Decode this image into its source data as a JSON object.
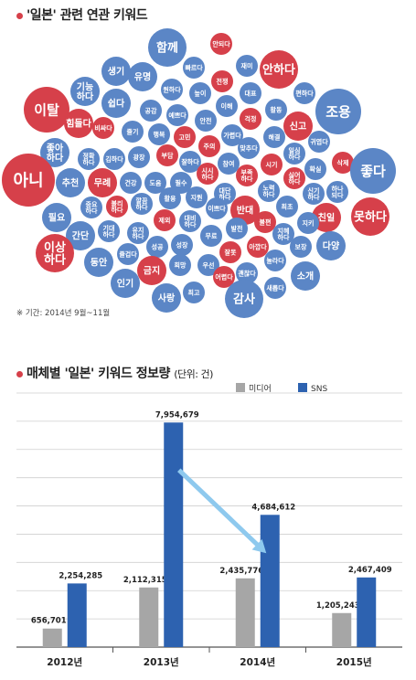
{
  "section1": {
    "title": "'일본' 관련 연관 키워드"
  },
  "keyword_cloud": {
    "colors": {
      "blue": "#5b86c6",
      "red": "#d6404a",
      "text": "#ffffff"
    },
    "keywords": [
      {
        "text": "함께",
        "tone": "blue",
        "size": "l"
      },
      {
        "text": "안되다",
        "tone": "red",
        "size": "s"
      },
      {
        "text": "빠르다",
        "tone": "blue",
        "size": "s"
      },
      {
        "text": "재미",
        "tone": "blue",
        "size": "s"
      },
      {
        "text": "안하다",
        "tone": "red",
        "size": "l"
      },
      {
        "text": "생기",
        "tone": "blue",
        "size": "m"
      },
      {
        "text": "유명",
        "tone": "blue",
        "size": "m"
      },
      {
        "text": "원하다",
        "tone": "blue",
        "size": "s"
      },
      {
        "text": "전쟁",
        "tone": "red",
        "size": "s"
      },
      {
        "text": "기능하다",
        "tone": "blue",
        "size": "m"
      },
      {
        "text": "높이",
        "tone": "blue",
        "size": "s"
      },
      {
        "text": "대표",
        "tone": "blue",
        "size": "s"
      },
      {
        "text": "편하다",
        "tone": "blue",
        "size": "s"
      },
      {
        "text": "이탈",
        "tone": "red",
        "size": "xl"
      },
      {
        "text": "쉽다",
        "tone": "blue",
        "size": "m"
      },
      {
        "text": "공감",
        "tone": "blue",
        "size": "s"
      },
      {
        "text": "예쁘다",
        "tone": "blue",
        "size": "s"
      },
      {
        "text": "이해",
        "tone": "blue",
        "size": "s"
      },
      {
        "text": "활동",
        "tone": "blue",
        "size": "s"
      },
      {
        "text": "조용",
        "tone": "blue",
        "size": "xl"
      },
      {
        "text": "힘들다",
        "tone": "red",
        "size": "m"
      },
      {
        "text": "비싸다",
        "tone": "red",
        "size": "s"
      },
      {
        "text": "즐기",
        "tone": "blue",
        "size": "s"
      },
      {
        "text": "행복",
        "tone": "blue",
        "size": "s"
      },
      {
        "text": "고민",
        "tone": "red",
        "size": "s"
      },
      {
        "text": "안전",
        "tone": "blue",
        "size": "s"
      },
      {
        "text": "걱정",
        "tone": "red",
        "size": "s"
      },
      {
        "text": "신고",
        "tone": "red",
        "size": "m"
      },
      {
        "text": "가렵다",
        "tone": "blue",
        "size": "s"
      },
      {
        "text": "해결",
        "tone": "blue",
        "size": "s"
      },
      {
        "text": "좋아하다",
        "tone": "blue",
        "size": "m"
      },
      {
        "text": "정확하다",
        "tone": "blue",
        "size": "s"
      },
      {
        "text": "김하다",
        "tone": "blue",
        "size": "s"
      },
      {
        "text": "광장",
        "tone": "blue",
        "size": "s"
      },
      {
        "text": "부담",
        "tone": "red",
        "size": "s"
      },
      {
        "text": "주의",
        "tone": "red",
        "size": "s"
      },
      {
        "text": "맞추다",
        "tone": "blue",
        "size": "s"
      },
      {
        "text": "일심하다",
        "tone": "blue",
        "size": "s"
      },
      {
        "text": "귀엽다",
        "tone": "blue",
        "size": "s"
      },
      {
        "text": "시기",
        "tone": "red",
        "size": "s"
      },
      {
        "text": "삭제",
        "tone": "red",
        "size": "s"
      },
      {
        "text": "잘하다",
        "tone": "blue",
        "size": "s"
      },
      {
        "text": "시시하다",
        "tone": "red",
        "size": "s"
      },
      {
        "text": "참여",
        "tone": "blue",
        "size": "s"
      },
      {
        "text": "아니",
        "tone": "red",
        "size": "xxl"
      },
      {
        "text": "추천",
        "tone": "blue",
        "size": "m"
      },
      {
        "text": "무례",
        "tone": "red",
        "size": "m"
      },
      {
        "text": "건강",
        "tone": "blue",
        "size": "s"
      },
      {
        "text": "도움",
        "tone": "blue",
        "size": "s"
      },
      {
        "text": "필수",
        "tone": "blue",
        "size": "s"
      },
      {
        "text": "부족하다",
        "tone": "red",
        "size": "s"
      },
      {
        "text": "싫어하다",
        "tone": "red",
        "size": "s"
      },
      {
        "text": "확실",
        "tone": "blue",
        "size": "s"
      },
      {
        "text": "좋다",
        "tone": "blue",
        "size": "xl"
      },
      {
        "text": "중요하다",
        "tone": "blue",
        "size": "s"
      },
      {
        "text": "불리하다",
        "tone": "red",
        "size": "s"
      },
      {
        "text": "깔끔하다",
        "tone": "blue",
        "size": "s"
      },
      {
        "text": "활용",
        "tone": "blue",
        "size": "s"
      },
      {
        "text": "지원",
        "tone": "blue",
        "size": "s"
      },
      {
        "text": "대단하다",
        "tone": "blue",
        "size": "s"
      },
      {
        "text": "노력하다",
        "tone": "blue",
        "size": "s"
      },
      {
        "text": "신기하다",
        "tone": "blue",
        "size": "s"
      },
      {
        "text": "하나되다",
        "tone": "blue",
        "size": "s"
      },
      {
        "text": "필요",
        "tone": "blue",
        "size": "m"
      },
      {
        "text": "이쁘다",
        "tone": "blue",
        "size": "s"
      },
      {
        "text": "반대",
        "tone": "red",
        "size": "m"
      },
      {
        "text": "최초",
        "tone": "blue",
        "size": "s"
      },
      {
        "text": "친일",
        "tone": "red",
        "size": "m"
      },
      {
        "text": "못하다",
        "tone": "red",
        "size": "l"
      },
      {
        "text": "간단",
        "tone": "blue",
        "size": "m"
      },
      {
        "text": "기대하다",
        "tone": "blue",
        "size": "s"
      },
      {
        "text": "유지하다",
        "tone": "blue",
        "size": "s"
      },
      {
        "text": "제외",
        "tone": "red",
        "size": "s"
      },
      {
        "text": "대비하다",
        "tone": "blue",
        "size": "s"
      },
      {
        "text": "발전",
        "tone": "blue",
        "size": "s"
      },
      {
        "text": "불편",
        "tone": "red",
        "size": "s"
      },
      {
        "text": "지혜하다",
        "tone": "blue",
        "size": "s"
      },
      {
        "text": "지키",
        "tone": "blue",
        "size": "s"
      },
      {
        "text": "이상하다",
        "tone": "red",
        "size": "l"
      },
      {
        "text": "즐겁다",
        "tone": "blue",
        "size": "s"
      },
      {
        "text": "성공",
        "tone": "blue",
        "size": "s"
      },
      {
        "text": "성장",
        "tone": "blue",
        "size": "s"
      },
      {
        "text": "무료",
        "tone": "blue",
        "size": "s"
      },
      {
        "text": "아깝다",
        "tone": "red",
        "size": "s"
      },
      {
        "text": "보장",
        "tone": "blue",
        "size": "s"
      },
      {
        "text": "다양",
        "tone": "blue",
        "size": "m"
      },
      {
        "text": "동안",
        "tone": "blue",
        "size": "m"
      },
      {
        "text": "금지",
        "tone": "red",
        "size": "m"
      },
      {
        "text": "희망",
        "tone": "blue",
        "size": "s"
      },
      {
        "text": "우선",
        "tone": "blue",
        "size": "s"
      },
      {
        "text": "잘못",
        "tone": "red",
        "size": "s"
      },
      {
        "text": "괜찮다",
        "tone": "blue",
        "size": "s"
      },
      {
        "text": "놀라다",
        "tone": "blue",
        "size": "s"
      },
      {
        "text": "인기",
        "tone": "blue",
        "size": "m"
      },
      {
        "text": "최고",
        "tone": "blue",
        "size": "s"
      },
      {
        "text": "어렵다",
        "tone": "red",
        "size": "s"
      },
      {
        "text": "새롭다",
        "tone": "blue",
        "size": "s"
      },
      {
        "text": "소개",
        "tone": "blue",
        "size": "m"
      },
      {
        "text": "사랑",
        "tone": "blue",
        "size": "m"
      },
      {
        "text": "감사",
        "tone": "blue",
        "size": "l"
      }
    ]
  },
  "period_note": "※ 기간: 2014년 9월~11월",
  "section2": {
    "title": "매체별 '일본' 키워드 정보량",
    "unit": "(단위: 건)"
  },
  "chart_data": {
    "type": "bar",
    "title": "매체별 '일본' 키워드 정보량",
    "unit": "(단위: 건)",
    "categories": [
      "2012년",
      "2013년",
      "2014년",
      "2015년"
    ],
    "series": [
      {
        "name": "미디어",
        "color": "#a6a6a6",
        "values": [
          656701,
          2112315,
          2435776,
          1205243
        ],
        "labels": [
          "656,701",
          "2,112,315",
          "2,435,776",
          "1,205,243"
        ]
      },
      {
        "name": "SNS",
        "color": "#2d62b0",
        "values": [
          2254285,
          7954679,
          4684612,
          2467409
        ],
        "labels": [
          "2,254,285",
          "7,954,679",
          "4,684,612",
          "2,467,409"
        ]
      }
    ],
    "ylim": [
      0,
      9000000
    ],
    "grid": true,
    "legend": "top-right",
    "arrow_color": "#8ec9ee"
  }
}
